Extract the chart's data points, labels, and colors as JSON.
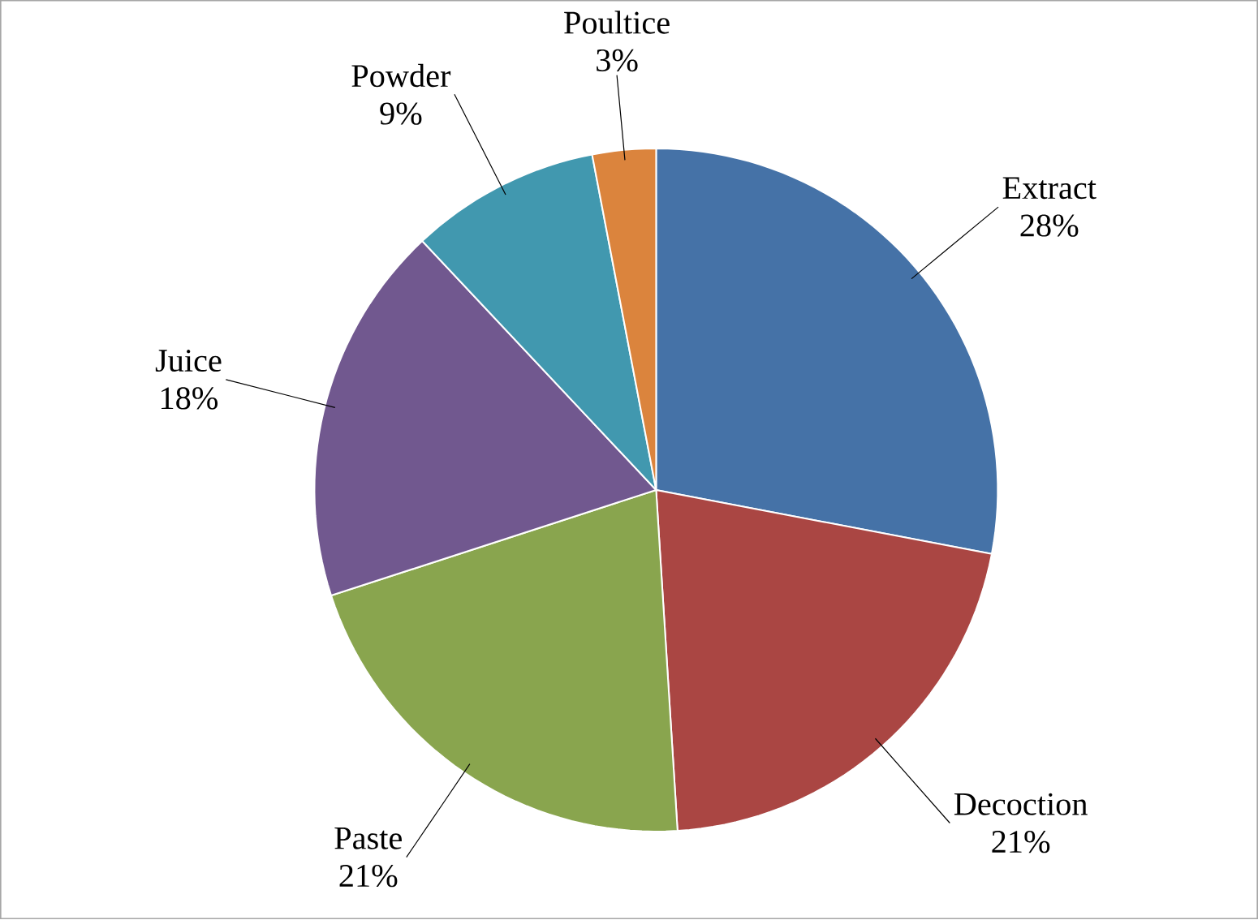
{
  "chart_data": {
    "type": "pie",
    "categories": [
      "Extract",
      "Decoction",
      "Paste",
      "Juice",
      "Powder",
      "Poultice"
    ],
    "values": [
      28,
      21,
      21,
      18,
      9,
      3
    ],
    "value_labels": [
      "28%",
      "21%",
      "21%",
      "18%",
      "9%",
      "3%"
    ],
    "colors": [
      "#4572a7",
      "#aa4643",
      "#89a54e",
      "#71588f",
      "#4198af",
      "#db843d"
    ]
  }
}
